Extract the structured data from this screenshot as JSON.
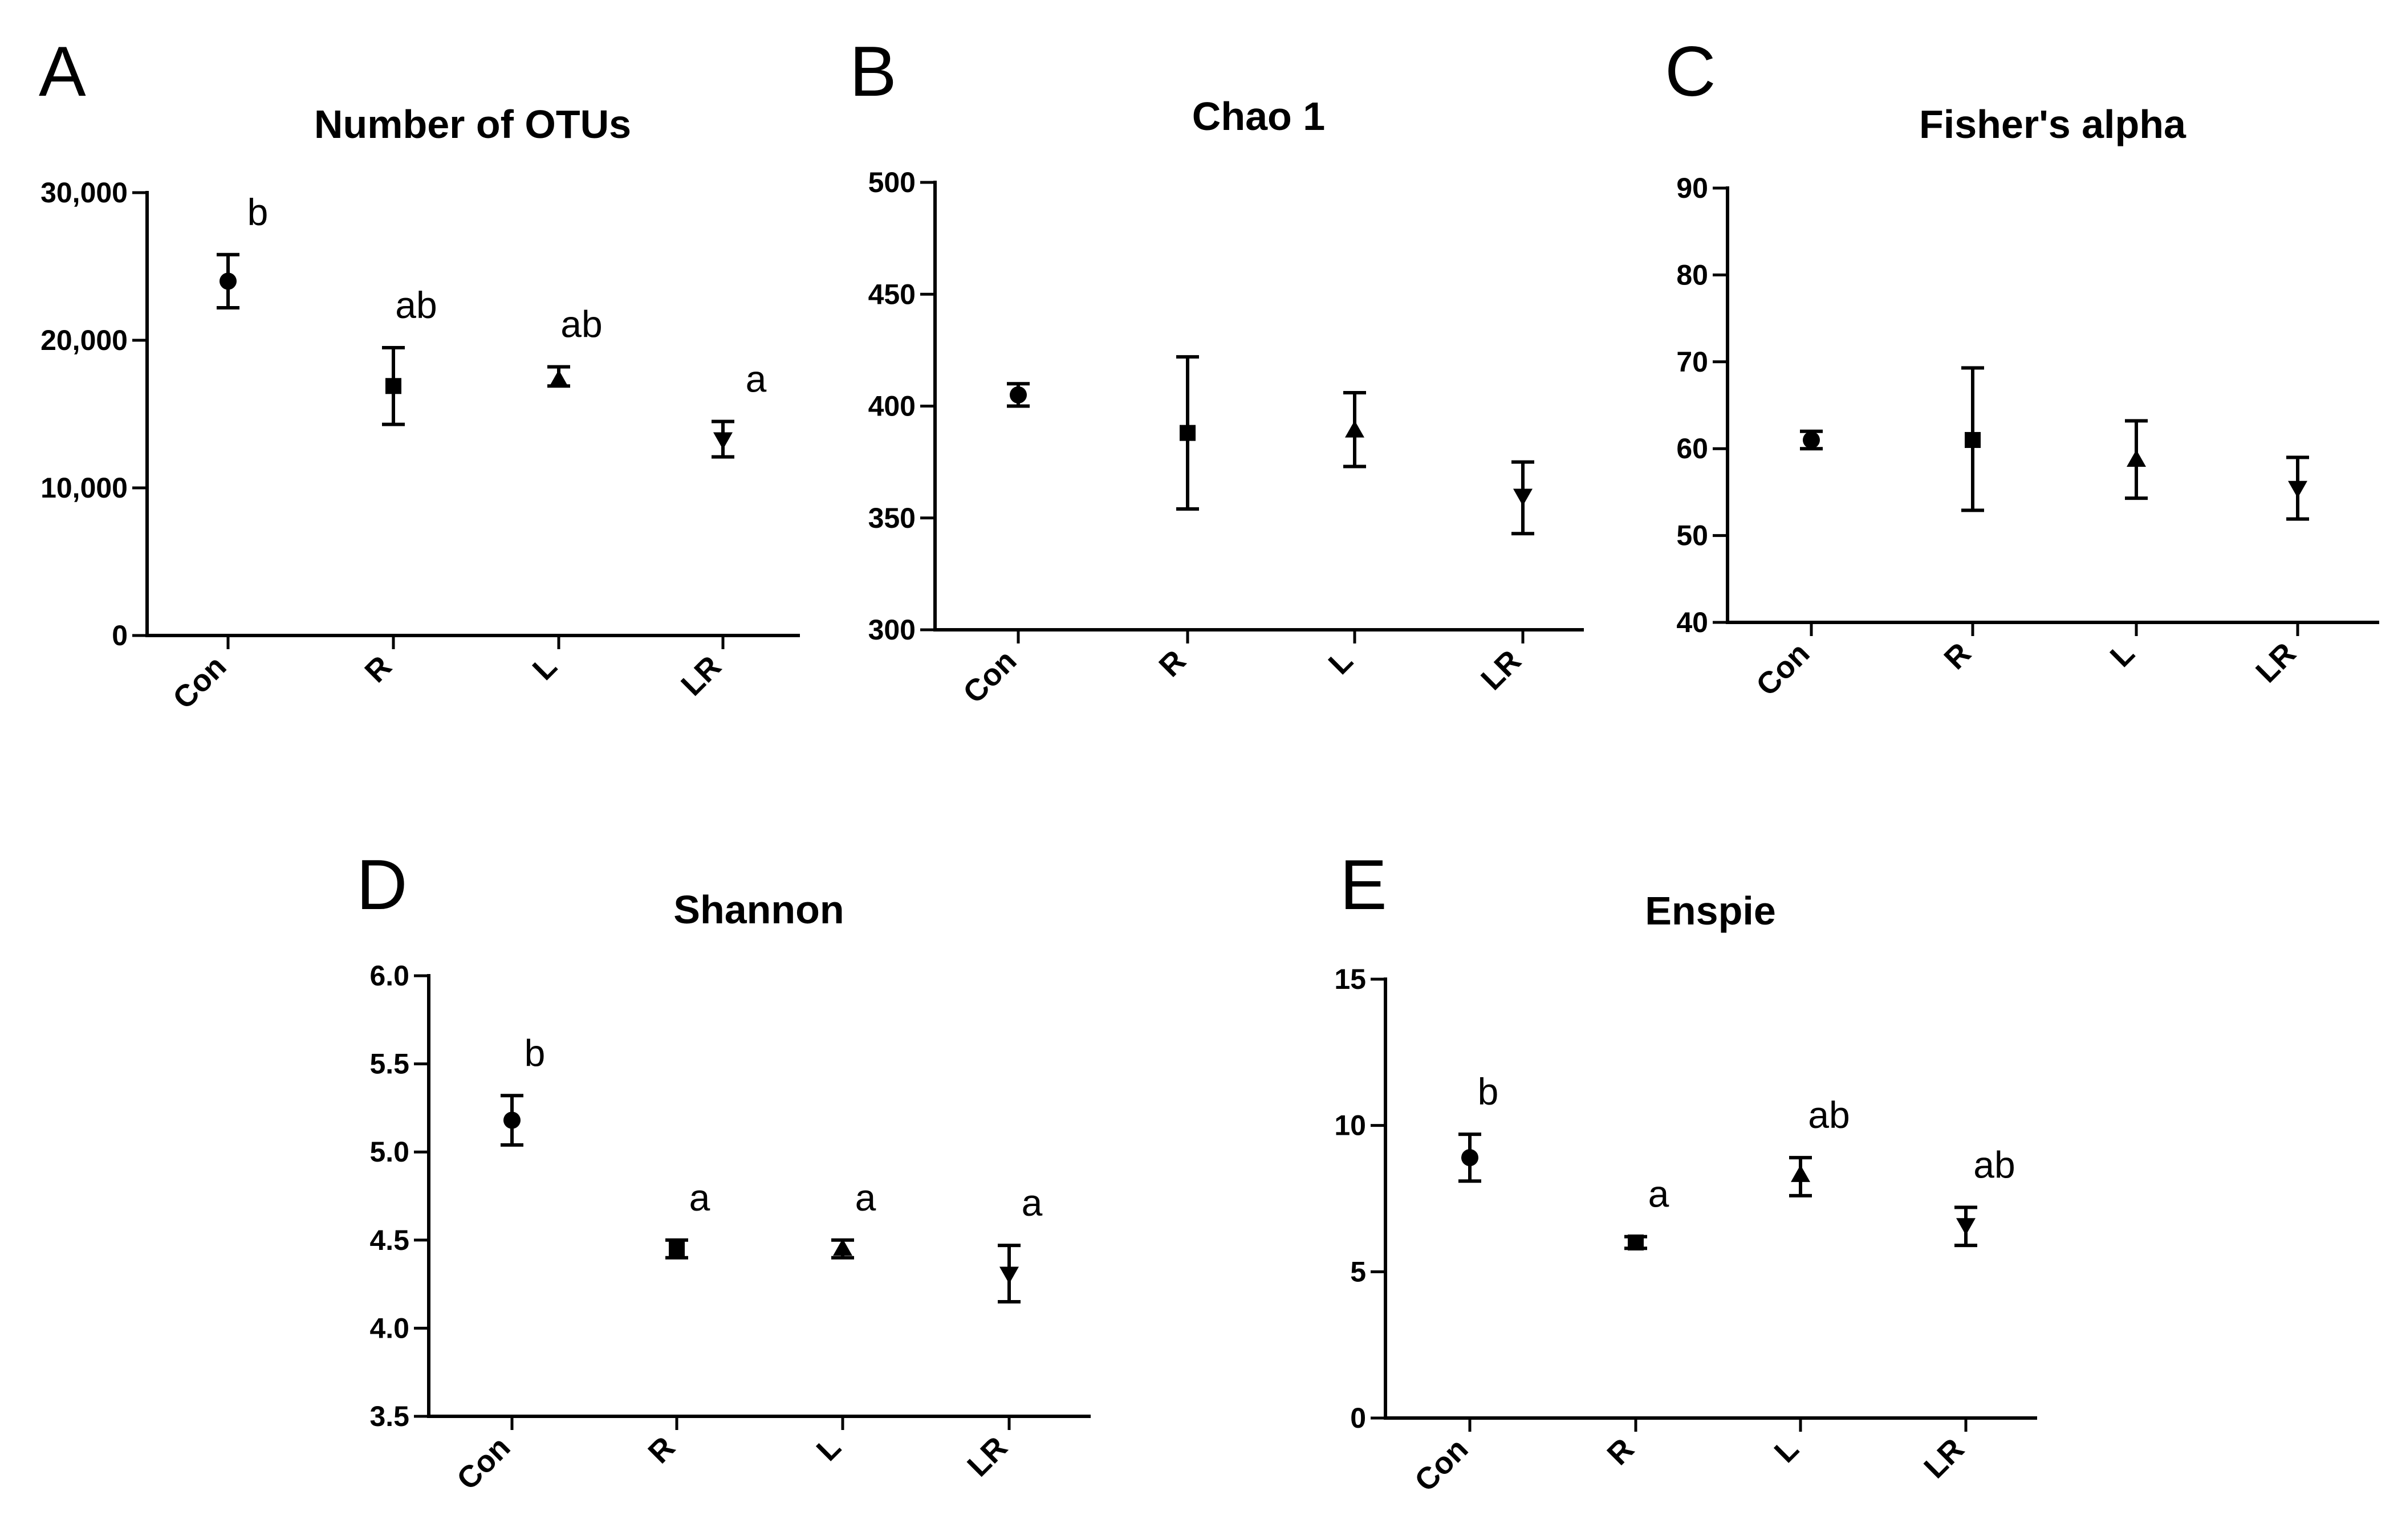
{
  "chart_data": [
    {
      "id": "A",
      "panel_label": "A",
      "type": "scatter",
      "title": "Number of OTUs",
      "xlabel": "",
      "ylabel": "",
      "categories": [
        "Con",
        "R",
        "L",
        "LR"
      ],
      "markers": [
        "circle",
        "square",
        "triangle-up",
        "triangle-down"
      ],
      "mean": [
        24000,
        16900,
        17300,
        13300
      ],
      "err_high": [
        25800,
        19500,
        18200,
        14500
      ],
      "err_low": [
        22200,
        14300,
        16900,
        12100
      ],
      "significance": [
        "b",
        "ab",
        "ab",
        "a"
      ],
      "ylim": [
        0,
        30000
      ],
      "yticks": [
        0,
        10000,
        20000,
        30000
      ],
      "ytick_labels": [
        "0",
        "10,000",
        "20,000",
        "30,000"
      ]
    },
    {
      "id": "B",
      "panel_label": "B",
      "type": "scatter",
      "title": "Chao 1",
      "xlabel": "",
      "ylabel": "",
      "categories": [
        "Con",
        "R",
        "L",
        "LR"
      ],
      "markers": [
        "circle",
        "square",
        "triangle-up",
        "triangle-down"
      ],
      "mean": [
        405,
        388,
        389,
        360
      ],
      "err_high": [
        410,
        422,
        406,
        375
      ],
      "err_low": [
        400,
        354,
        373,
        343
      ],
      "significance": [],
      "ylim": [
        300,
        500
      ],
      "yticks": [
        300,
        350,
        400,
        450,
        500
      ],
      "ytick_labels": [
        "300",
        "350",
        "400",
        "450",
        "500"
      ]
    },
    {
      "id": "C",
      "panel_label": "C",
      "type": "scatter",
      "title": "Fisher's alpha",
      "xlabel": "",
      "ylabel": "",
      "categories": [
        "Con",
        "R",
        "L",
        "LR"
      ],
      "markers": [
        "circle",
        "square",
        "triangle-up",
        "triangle-down"
      ],
      "mean": [
        61,
        61,
        58.7,
        55.5
      ],
      "err_high": [
        62,
        69.3,
        63.2,
        59
      ],
      "err_low": [
        60,
        52.9,
        54.3,
        51.9
      ],
      "significance": [],
      "ylim": [
        40,
        90
      ],
      "yticks": [
        40,
        50,
        60,
        70,
        80,
        90
      ],
      "ytick_labels": [
        "40",
        "50",
        "60",
        "70",
        "80",
        "90"
      ]
    },
    {
      "id": "D",
      "panel_label": "D",
      "type": "scatter",
      "title": "Shannon",
      "xlabel": "",
      "ylabel": "",
      "categories": [
        "Con",
        "R",
        "L",
        "LR"
      ],
      "markers": [
        "circle",
        "square",
        "triangle-up",
        "triangle-down"
      ],
      "mean": [
        5.18,
        4.45,
        4.45,
        4.31
      ],
      "err_high": [
        5.32,
        4.5,
        4.5,
        4.47
      ],
      "err_low": [
        5.04,
        4.4,
        4.4,
        4.15
      ],
      "significance": [
        "b",
        "a",
        "a",
        "a"
      ],
      "ylim": [
        3.5,
        6.0
      ],
      "yticks": [
        3.5,
        4.0,
        4.5,
        5.0,
        5.5,
        6.0
      ],
      "ytick_labels": [
        "3.5",
        "4.0",
        "4.5",
        "5.0",
        "5.5",
        "6.0"
      ]
    },
    {
      "id": "E",
      "panel_label": "E",
      "type": "scatter",
      "title": "Enspie",
      "xlabel": "",
      "ylabel": "",
      "categories": [
        "Con",
        "R",
        "L",
        "LR"
      ],
      "markers": [
        "circle",
        "square",
        "triangle-up",
        "triangle-down"
      ],
      "mean": [
        8.9,
        6.0,
        8.3,
        6.6
      ],
      "err_high": [
        9.7,
        6.2,
        8.9,
        7.2
      ],
      "err_low": [
        8.1,
        5.8,
        7.6,
        5.9
      ],
      "significance": [
        "b",
        "a",
        "ab",
        "ab"
      ],
      "ylim": [
        0,
        15
      ],
      "yticks": [
        0,
        5,
        10,
        15
      ],
      "ytick_labels": [
        "0",
        "5",
        "10",
        "15"
      ]
    }
  ]
}
